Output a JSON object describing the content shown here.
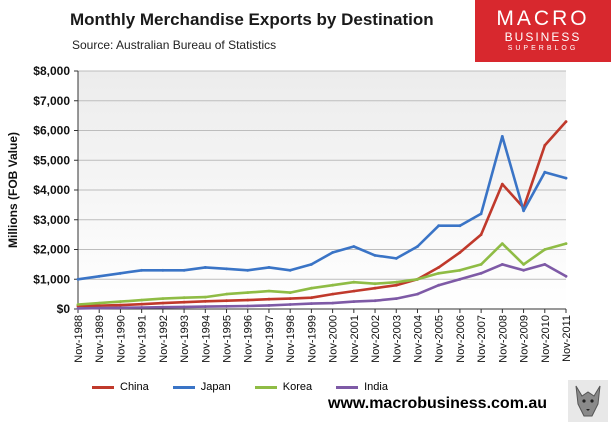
{
  "header": {
    "title": "Monthly Merchandise Exports by Destination",
    "source": "Source:  Australian Bureau of Statistics"
  },
  "logo": {
    "line1": "MACRO",
    "line2": "BUSINESS",
    "line3": "SUPERBLOG",
    "color": "#d8282e"
  },
  "footer": {
    "website": "www.macrobusiness.com.au"
  },
  "chart_data": {
    "type": "line",
    "title": "Monthly Merchandise Exports by Destination",
    "ylabel": "Millions (FOB Value)",
    "xlabel": "",
    "ylim": [
      0,
      8000
    ],
    "yticks": [
      0,
      1000,
      2000,
      3000,
      4000,
      5000,
      6000,
      7000,
      8000
    ],
    "ytick_labels": [
      "$0",
      "$1,000",
      "$2,000",
      "$3,000",
      "$4,000",
      "$5,000",
      "$6,000",
      "$7,000",
      "$8,000"
    ],
    "xlim": [
      "Nov-1988",
      "Nov-2011"
    ],
    "xtick_labels": [
      "Nov-1988",
      "Nov-1989",
      "Nov-1990",
      "Nov-1991",
      "Nov-1992",
      "Nov-1993",
      "Nov-1994",
      "Nov-1995",
      "Nov-1996",
      "Nov-1997",
      "Nov-1998",
      "Nov-1999",
      "Nov-2000",
      "Nov-2001",
      "Nov-2002",
      "Nov-2003",
      "Nov-2004",
      "Nov-2005",
      "Nov-2006",
      "Nov-2007",
      "Nov-2008",
      "Nov-2009",
      "Nov-2010",
      "Nov-2011"
    ],
    "grid": "horizontal",
    "legend_position": "bottom",
    "x": [
      "Nov-1988",
      "Nov-1989",
      "Nov-1990",
      "Nov-1991",
      "Nov-1992",
      "Nov-1993",
      "Nov-1994",
      "Nov-1995",
      "Nov-1996",
      "Nov-1997",
      "Nov-1998",
      "Nov-1999",
      "Nov-2000",
      "Nov-2001",
      "Nov-2002",
      "Nov-2003",
      "Nov-2004",
      "Nov-2005",
      "Nov-2006",
      "Nov-2007",
      "Nov-2008",
      "Nov-2009",
      "Nov-2010",
      "Nov-2011"
    ],
    "series": [
      {
        "name": "China",
        "color": "#c0392b",
        "values": [
          100,
          110,
          130,
          160,
          200,
          230,
          260,
          280,
          300,
          330,
          350,
          380,
          500,
          600,
          700,
          800,
          1000,
          1400,
          1900,
          2500,
          4200,
          3400,
          5500,
          6300
        ]
      },
      {
        "name": "Japan",
        "color": "#3a74c6",
        "values": [
          1000,
          1100,
          1200,
          1300,
          1300,
          1300,
          1400,
          1350,
          1300,
          1400,
          1300,
          1500,
          1900,
          2100,
          1800,
          1700,
          2100,
          2800,
          2800,
          3200,
          5800,
          3300,
          4600,
          4400
        ]
      },
      {
        "name": "Korea",
        "color": "#8fbc45",
        "values": [
          150,
          200,
          250,
          300,
          350,
          380,
          400,
          500,
          550,
          600,
          550,
          700,
          800,
          900,
          850,
          900,
          1000,
          1200,
          1300,
          1500,
          2200,
          1500,
          2000,
          2200
        ]
      },
      {
        "name": "India",
        "color": "#7e5aa6",
        "values": [
          20,
          30,
          40,
          50,
          60,
          70,
          80,
          90,
          100,
          120,
          150,
          180,
          200,
          250,
          280,
          350,
          500,
          800,
          1000,
          1200,
          1500,
          1300,
          1500,
          1100
        ]
      }
    ]
  }
}
